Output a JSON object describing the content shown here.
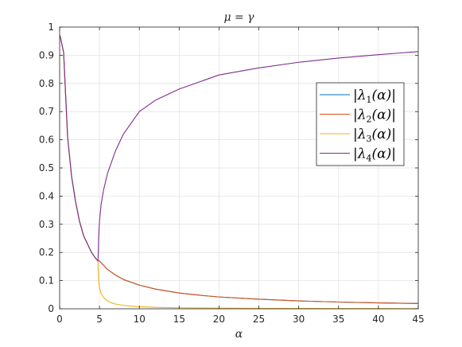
{
  "chart_data": {
    "type": "line",
    "title": "μ = γ",
    "xlabel": "α",
    "ylabel": "",
    "xlim": [
      0,
      45
    ],
    "ylim": [
      0,
      1
    ],
    "xticks": [
      0,
      5,
      10,
      15,
      20,
      25,
      30,
      35,
      40,
      45
    ],
    "yticks": [
      0,
      0.1,
      0.2,
      0.3,
      0.4,
      0.5,
      0.6,
      0.7,
      0.8,
      0.9,
      1
    ],
    "xtick_labels": [
      "0",
      "5",
      "10",
      "15",
      "20",
      "25",
      "30",
      "35",
      "40",
      "45"
    ],
    "ytick_labels": [
      "0",
      "0.1",
      "0.2",
      "0.3",
      "0.4",
      "0.5",
      "0.6",
      "0.7",
      "0.8",
      "0.9",
      "1"
    ],
    "grid": true,
    "legend_position": "right",
    "series": [
      {
        "name": "|λ1(α)|",
        "legend_parts": {
          "pre": "|λ",
          "sub": "1",
          "post": "(α)|"
        },
        "color": "#0072BD",
        "x": [
          0.05,
          0.5,
          1,
          1.5,
          2,
          2.5,
          3,
          3.5,
          4,
          4.5,
          4.8,
          5,
          6,
          7,
          8,
          10,
          12,
          15,
          18,
          20,
          25,
          30,
          35,
          40,
          45
        ],
        "y": [
          0.97,
          0.91,
          0.61,
          0.47,
          0.38,
          0.31,
          0.26,
          0.23,
          0.2,
          0.18,
          0.17,
          0.17,
          0.14,
          0.12,
          0.104,
          0.084,
          0.07,
          0.056,
          0.047,
          0.042,
          0.034,
          0.028,
          0.024,
          0.021,
          0.019
        ]
      },
      {
        "name": "|λ2(α)|",
        "legend_parts": {
          "pre": "|λ",
          "sub": "2",
          "post": "(α)|"
        },
        "color": "#D95319",
        "x": [
          0.05,
          0.5,
          1,
          1.5,
          2,
          2.5,
          3,
          3.5,
          4,
          4.5,
          4.8,
          5,
          6,
          7,
          8,
          10,
          12,
          15,
          18,
          20,
          25,
          30,
          35,
          40,
          45
        ],
        "y": [
          0.97,
          0.91,
          0.61,
          0.47,
          0.38,
          0.31,
          0.26,
          0.23,
          0.2,
          0.18,
          0.17,
          0.17,
          0.14,
          0.12,
          0.104,
          0.084,
          0.07,
          0.056,
          0.047,
          0.042,
          0.034,
          0.028,
          0.024,
          0.021,
          0.019
        ]
      },
      {
        "name": "|λ3(α)|",
        "legend_parts": {
          "pre": "|λ",
          "sub": "3",
          "post": "(α)|"
        },
        "color": "#EDB120",
        "x": [
          0.05,
          0.5,
          1,
          1.5,
          2,
          2.5,
          3,
          3.5,
          4,
          4.5,
          4.8,
          4.85,
          4.9,
          5,
          5.2,
          5.5,
          6,
          6.5,
          7,
          8,
          9,
          10,
          12,
          15,
          20,
          25,
          30,
          35,
          40,
          45
        ],
        "y": [
          0.97,
          0.91,
          0.61,
          0.47,
          0.38,
          0.31,
          0.26,
          0.23,
          0.2,
          0.18,
          0.17,
          0.13,
          0.1,
          0.075,
          0.055,
          0.04,
          0.028,
          0.021,
          0.017,
          0.012,
          0.0095,
          0.0075,
          0.005,
          0.0035,
          0.0022,
          0.0016,
          0.0012,
          0.001,
          0.0008,
          0.0007
        ]
      },
      {
        "name": "|λ4(α)|",
        "legend_parts": {
          "pre": "|λ",
          "sub": "4",
          "post": "(α)|"
        },
        "color": "#7E2F8E",
        "x": [
          0.05,
          0.5,
          1,
          1.5,
          2,
          2.5,
          3,
          3.5,
          4,
          4.5,
          4.8,
          4.85,
          4.9,
          5,
          5.2,
          5.5,
          6,
          6.5,
          7,
          8,
          9,
          10,
          12,
          15,
          20,
          25,
          30,
          35,
          40,
          45
        ],
        "y": [
          0.97,
          0.91,
          0.61,
          0.47,
          0.38,
          0.31,
          0.26,
          0.23,
          0.2,
          0.18,
          0.17,
          0.2,
          0.26,
          0.31,
          0.37,
          0.42,
          0.48,
          0.52,
          0.56,
          0.62,
          0.66,
          0.7,
          0.74,
          0.78,
          0.83,
          0.855,
          0.875,
          0.89,
          0.902,
          0.913
        ]
      }
    ]
  }
}
